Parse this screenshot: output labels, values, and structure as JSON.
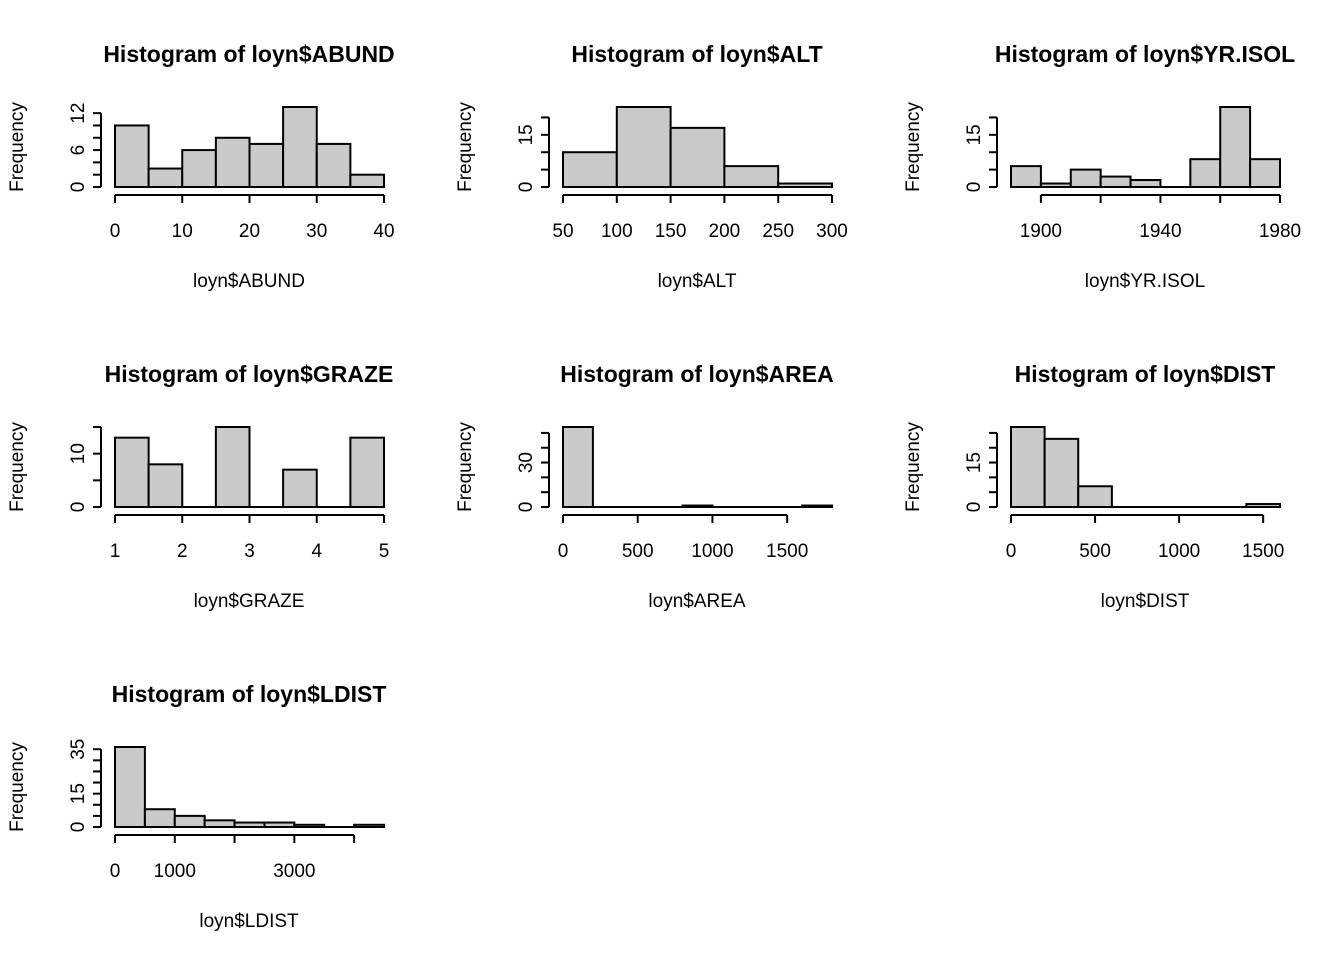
{
  "colors": {
    "bar_fill": "#cacaca",
    "bar_stroke": "#000000",
    "background": "#ffffff"
  },
  "chart_data": [
    {
      "type": "bar",
      "title": "Histogram of loyn$ABUND",
      "xlabel": "loyn$ABUND",
      "ylabel": "Frequency",
      "bins": [
        [
          0,
          5
        ],
        [
          5,
          10
        ],
        [
          10,
          15
        ],
        [
          15,
          20
        ],
        [
          20,
          25
        ],
        [
          25,
          30
        ],
        [
          30,
          35
        ],
        [
          35,
          40
        ]
      ],
      "values": [
        10,
        3,
        6,
        8,
        7,
        13,
        7,
        2
      ],
      "xlim": [
        0,
        40
      ],
      "ylim": [
        0,
        13
      ],
      "xticks": [
        0,
        10,
        20,
        30,
        40
      ],
      "xtick_labels": [
        "0",
        "10",
        "20",
        "30",
        "40"
      ],
      "yticks": [
        0,
        6,
        12
      ],
      "ytick_labels": [
        "0",
        "6",
        "12"
      ],
      "yminor": [
        0,
        2,
        4,
        6,
        8,
        10,
        12
      ]
    },
    {
      "type": "bar",
      "title": "Histogram of loyn$ALT",
      "xlabel": "loyn$ALT",
      "ylabel": "Frequency",
      "bins": [
        [
          50,
          100
        ],
        [
          100,
          150
        ],
        [
          150,
          200
        ],
        [
          200,
          250
        ],
        [
          250,
          300
        ]
      ],
      "values": [
        10,
        23,
        17,
        6,
        1
      ],
      "xlim": [
        50,
        300
      ],
      "ylim": [
        0,
        23
      ],
      "xticks": [
        50,
        100,
        150,
        200,
        250,
        300
      ],
      "xtick_labels": [
        "50",
        "100",
        "150",
        "200",
        "250",
        "300"
      ],
      "yticks": [
        0,
        15
      ],
      "ytick_labels": [
        "0",
        "15"
      ],
      "yminor": [
        0,
        5,
        10,
        15,
        20
      ]
    },
    {
      "type": "bar",
      "title": "Histogram of loyn$YR.ISOL",
      "xlabel": "loyn$YR.ISOL",
      "ylabel": "Frequency",
      "bins": [
        [
          1890,
          1900
        ],
        [
          1900,
          1910
        ],
        [
          1910,
          1920
        ],
        [
          1920,
          1930
        ],
        [
          1930,
          1940
        ],
        [
          1940,
          1950
        ],
        [
          1950,
          1960
        ],
        [
          1960,
          1970
        ],
        [
          1970,
          1980
        ]
      ],
      "values": [
        6,
        1,
        5,
        3,
        2,
        0,
        8,
        23,
        8
      ],
      "xlim": [
        1890,
        1980
      ],
      "ylim": [
        0,
        23
      ],
      "xticks": [
        1900,
        1940,
        1980
      ],
      "xtick_labels": [
        "1900",
        "1940",
        "1980"
      ],
      "xminor": [
        1900,
        1920,
        1940,
        1960,
        1980
      ],
      "yticks": [
        0,
        15
      ],
      "ytick_labels": [
        "0",
        "15"
      ],
      "yminor": [
        0,
        5,
        10,
        15,
        20
      ]
    },
    {
      "type": "bar",
      "title": "Histogram of loyn$GRAZE",
      "xlabel": "loyn$GRAZE",
      "ylabel": "Frequency",
      "bins": [
        [
          1,
          1.5
        ],
        [
          1.5,
          2
        ],
        [
          2,
          2.5
        ],
        [
          2.5,
          3
        ],
        [
          3,
          3.5
        ],
        [
          3.5,
          4
        ],
        [
          4,
          4.5
        ],
        [
          4.5,
          5
        ]
      ],
      "values": [
        13,
        8,
        0,
        15,
        0,
        7,
        0,
        13
      ],
      "xlim": [
        1,
        5
      ],
      "ylim": [
        0,
        15
      ],
      "xticks": [
        1,
        2,
        3,
        4,
        5
      ],
      "xtick_labels": [
        "1",
        "2",
        "3",
        "4",
        "5"
      ],
      "yticks": [
        0,
        10
      ],
      "ytick_labels": [
        "0",
        "10"
      ],
      "yminor": [
        0,
        5,
        10,
        15
      ]
    },
    {
      "type": "bar",
      "title": "Histogram of loyn$AREA",
      "xlabel": "loyn$AREA",
      "ylabel": "Frequency",
      "bins": [
        [
          0,
          200
        ],
        [
          200,
          400
        ],
        [
          400,
          600
        ],
        [
          600,
          800
        ],
        [
          800,
          1000
        ],
        [
          1000,
          1200
        ],
        [
          1200,
          1400
        ],
        [
          1400,
          1600
        ],
        [
          1600,
          1800
        ]
      ],
      "values": [
        54,
        0,
        0,
        0,
        1,
        0,
        0,
        0,
        1
      ],
      "xlim": [
        0,
        1800
      ],
      "ylim": [
        0,
        54
      ],
      "xticks": [
        0,
        500,
        1000,
        1500
      ],
      "xtick_labels": [
        "0",
        "500",
        "1000",
        "1500"
      ],
      "yticks": [
        0,
        30
      ],
      "ytick_labels": [
        "0",
        "30"
      ],
      "yminor": [
        0,
        10,
        20,
        30,
        40,
        50
      ]
    },
    {
      "type": "bar",
      "title": "Histogram of loyn$DIST",
      "xlabel": "loyn$DIST",
      "ylabel": "Frequency",
      "bins": [
        [
          0,
          200
        ],
        [
          200,
          400
        ],
        [
          400,
          600
        ],
        [
          600,
          800
        ],
        [
          800,
          1000
        ],
        [
          1000,
          1200
        ],
        [
          1200,
          1400
        ],
        [
          1400,
          1600
        ]
      ],
      "values": [
        27,
        23,
        7,
        0,
        0,
        0,
        0,
        1
      ],
      "xlim": [
        0,
        1600
      ],
      "ylim": [
        0,
        27
      ],
      "xticks": [
        0,
        500,
        1000,
        1500
      ],
      "xtick_labels": [
        "0",
        "500",
        "1000",
        "1500"
      ],
      "yticks": [
        0,
        15
      ],
      "ytick_labels": [
        "0",
        "15"
      ],
      "yminor": [
        0,
        5,
        10,
        15,
        20,
        25
      ]
    },
    {
      "type": "bar",
      "title": "Histogram of loyn$LDIST",
      "xlabel": "loyn$LDIST",
      "ylabel": "Frequency",
      "bins": [
        [
          0,
          500
        ],
        [
          500,
          1000
        ],
        [
          1000,
          1500
        ],
        [
          1500,
          2000
        ],
        [
          2000,
          2500
        ],
        [
          2500,
          3000
        ],
        [
          3000,
          3500
        ],
        [
          3500,
          4000
        ],
        [
          4000,
          4500
        ]
      ],
      "values": [
        36,
        8,
        5,
        3,
        2,
        2,
        1,
        0,
        1
      ],
      "xlim": [
        0,
        4500
      ],
      "ylim": [
        0,
        36
      ],
      "xticks": [
        0,
        1000,
        3000
      ],
      "xtick_labels": [
        "0",
        "1000",
        "3000"
      ],
      "xminor": [
        0,
        1000,
        2000,
        3000,
        4000
      ],
      "yticks": [
        0,
        15,
        35
      ],
      "ytick_labels": [
        "0",
        "15",
        "35"
      ],
      "yminor": [
        0,
        5,
        10,
        15,
        20,
        25,
        30,
        35
      ]
    }
  ]
}
